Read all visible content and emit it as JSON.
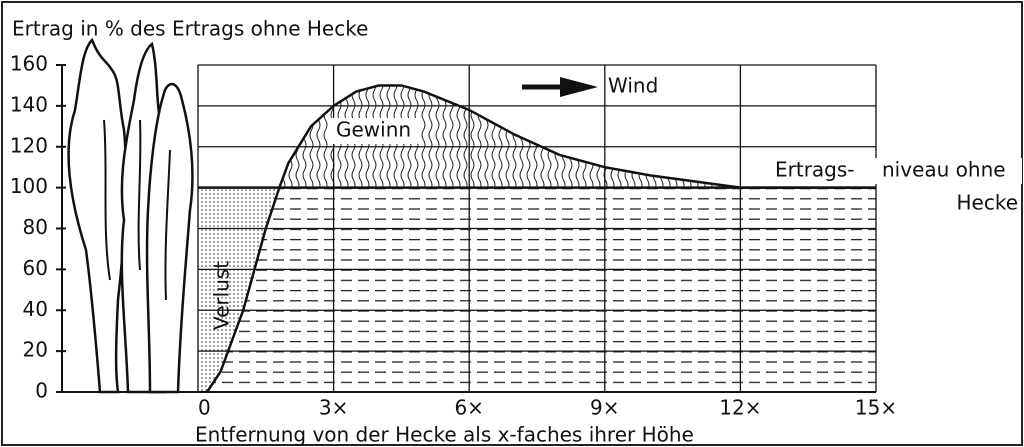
{
  "chart_data": {
    "type": "line",
    "title": "Ertrag  in % des Ertrags ohne Hecke",
    "x_label": "Entfernung von der Hecke als x-faches ihrer Höhe",
    "x": [
      0.2,
      0.5,
      1,
      1.5,
      1.8,
      2,
      2.5,
      3,
      3.5,
      4,
      4.5,
      5,
      6,
      7,
      8,
      9,
      10,
      11,
      12,
      13,
      15
    ],
    "values": [
      0,
      10,
      40,
      80,
      100,
      112,
      130,
      140,
      147,
      150,
      150,
      147,
      138,
      126,
      116,
      110,
      106,
      103,
      100,
      100,
      100
    ],
    "color": "#111111",
    "reference": 100,
    "xlim": [
      0,
      15
    ],
    "xticks": [
      0,
      {
        "value": 3,
        "label": "3×"
      },
      {
        "value": 6,
        "label": "6×"
      },
      {
        "value": 9,
        "label": "9×"
      },
      {
        "value": 12,
        "label": "12×"
      },
      {
        "value": 15,
        "label": "15×"
      }
    ],
    "ylim": [
      0,
      160
    ],
    "yticks": [
      0,
      20,
      40,
      60,
      80,
      100,
      120,
      140,
      160
    ],
    "grid": true,
    "annotations": {
      "gain": "Gewinn",
      "loss": "Verlust",
      "wind": "Wind",
      "level_1": "Ertrags-",
      "level_2": "niveau ohne",
      "level_3": "Hecke"
    }
  }
}
